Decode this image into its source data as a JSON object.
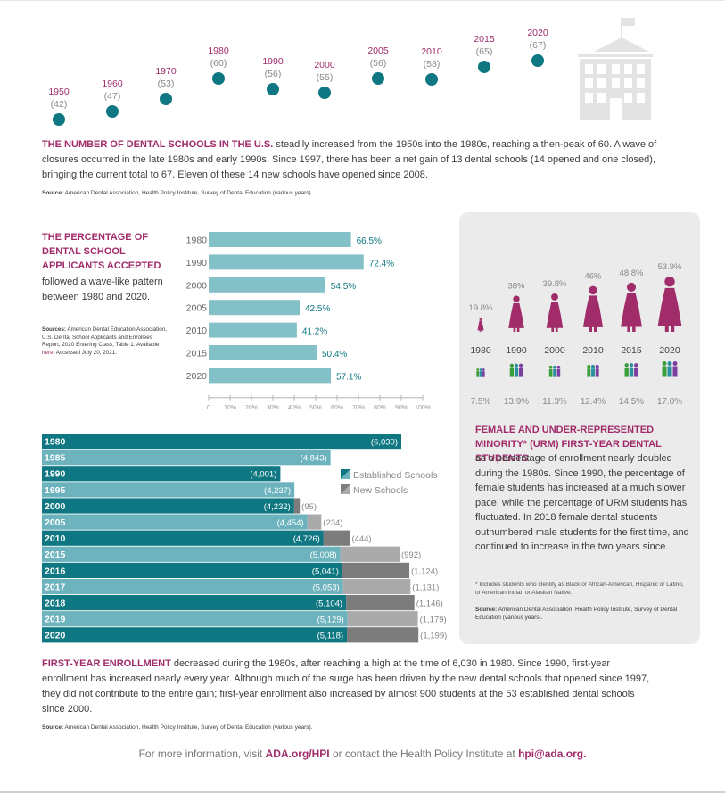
{
  "timeline": {
    "items": [
      {
        "year": "1950",
        "count": "(42)"
      },
      {
        "year": "1960",
        "count": "(47)"
      },
      {
        "year": "1970",
        "count": "(53)"
      },
      {
        "year": "1980",
        "count": "(60)"
      },
      {
        "year": "1990",
        "count": "(56)"
      },
      {
        "year": "2000",
        "count": "(55)"
      },
      {
        "year": "2005",
        "count": "(56)"
      },
      {
        "year": "2010",
        "count": "(58)"
      },
      {
        "year": "2015",
        "count": "(65)"
      },
      {
        "year": "2020",
        "count": "(67)"
      }
    ],
    "icon": "school-building-icon"
  },
  "schools": {
    "headline": "THE NUMBER OF DENTAL SCHOOLS IN THE U.S.",
    "body": " steadily increased from the 1950s into the 1980s, reaching a then-peak of 60. A wave of closures occurred in the late 1980s and early 1990s. Since 1997, there has been a net gain of 13 dental schools (14 opened and one closed), bringing the current total to 67. Eleven of these 14 new schools have opened since 2008.",
    "source_label": "Source:",
    "source_text": " American Dental Association, Health Policy Institute, Survey of Dental Education (various years)."
  },
  "acceptance": {
    "title": "THE PERCENTAGE OF DENTAL SCHOOL APPLICANTS ACCEPTED",
    "body": "followed a wave-like pattern between 1980 and 2020.",
    "source_label": "Sources:",
    "source_text_1": " American Dental Education Association, U.S. Dental School Applicants and Enrollees Report, 2020 Entering Class, Table 1. Available ",
    "source_link": "here",
    "source_text_2": ". Accessed July 20, 2021."
  },
  "enrollment": {
    "headline": "FIRST-YEAR ENROLLMENT",
    "body": " decreased during the 1980s, after reaching a high at the time of 6,030 in 1980. Since 1990, first-year enrollment has increased nearly every year. Although much of the surge has been driven by the new dental schools that opened since 1997, they did not contribute to the entire gain; first-year enrollment also increased by almost 900 students at the 53 established dental schools since 2000.",
    "source_label": "Source:",
    "source_text": " American Dental Association, Health Policy Institute, Survey of Dental Education (various years).",
    "legend_established": "Established Schools",
    "legend_new": "New Schools"
  },
  "urm": {
    "title": "FEMALE AND UNDER-REPRESENTED MINORITY* (URM) FIRST-YEAR DENTAL STUDENTS",
    "body": " as a percentage of enrollment nearly doubled during the 1980s. Since 1990, the percentage of female students has increased at a much slower pace, while the percentage of URM students has fluctuated. In 2018 female dental students outnumbered male students for the first time, and continued to increase in the two years since.",
    "footnote": "* Includes students who identify as Black or African-American, Hispanic or Latino, or American Indian or Alaskan Native.",
    "source_label": "Source:",
    "source_text": " American Dental Association, Health Policy Institute, Survey of Dental Education (various years)."
  },
  "footer": {
    "text_1": "For more information, visit ",
    "link_1": "ADA.org/HPI",
    "text_2": " or contact the Health Policy Institute at ",
    "link_2": "hpi@ada.org."
  },
  "colors": {
    "magenta": "#a02c6a",
    "teal_dark": "#0e7781",
    "teal_light": "#6cb3bd",
    "bar_accept": "#84c0c8",
    "gray_dark": "#7c7c7c",
    "gray_light": "#aaaaaa"
  },
  "chart_data": [
    {
      "type": "bar",
      "orientation": "horizontal",
      "categories": [
        "1980",
        "1990",
        "2000",
        "2005",
        "2010",
        "2015",
        "2020"
      ],
      "values": [
        66.5,
        72.4,
        54.5,
        42.5,
        41.2,
        50.4,
        57.1
      ],
      "value_labels": [
        "66.5%",
        "72.4%",
        "54.5%",
        "42.5%",
        "41.2%",
        "50.4%",
        "57.1%"
      ],
      "xlim": [
        0,
        100
      ],
      "xticks": [
        "0",
        "10%",
        "20%",
        "30%",
        "40%",
        "50%",
        "60%",
        "70%",
        "80%",
        "90%",
        "100%"
      ]
    },
    {
      "type": "bar",
      "orientation": "horizontal",
      "stacked": true,
      "categories": [
        "1980",
        "1985",
        "1990",
        "1995",
        "2000",
        "2005",
        "2010",
        "2015",
        "2016",
        "2017",
        "2018",
        "2019",
        "2020"
      ],
      "series": [
        {
          "name": "Established Schools",
          "values": [
            6030,
            4843,
            4001,
            4237,
            4232,
            4454,
            4726,
            5008,
            5041,
            5053,
            5104,
            5129,
            5118
          ],
          "labels": [
            "(6,030)",
            "(4,843)",
            "(4,001)",
            "(4,237)",
            "(4,232)",
            "(4,454)",
            "(4,726)",
            "(5,008)",
            "(5,041)",
            "(5,053)",
            "(5,104)",
            "(5,129)",
            "(5,118)"
          ]
        },
        {
          "name": "New Schools",
          "values": [
            0,
            0,
            0,
            0,
            95,
            234,
            444,
            992,
            1124,
            1131,
            1146,
            1179,
            1199
          ],
          "labels": [
            "",
            "",
            "",
            "",
            "(95)",
            "(234)",
            "(444)",
            "(992)",
            "(1,124)",
            "(1,131)",
            "(1,146)",
            "(1,179)",
            "(1,199)"
          ]
        }
      ]
    },
    {
      "type": "pictograph",
      "categories": [
        "1980",
        "1990",
        "2000",
        "2010",
        "2015",
        "2020"
      ],
      "series": [
        {
          "name": "Female",
          "values": [
            19.8,
            38,
            39.8,
            46,
            48.8,
            53.9
          ],
          "labels": [
            "19.8%",
            "38%",
            "39.8%",
            "46%",
            "48.8%",
            "53.9%"
          ]
        },
        {
          "name": "URM",
          "values": [
            7.5,
            13.9,
            11.3,
            12.4,
            14.5,
            17.0
          ],
          "labels": [
            "7.5%",
            "13.9%",
            "11.3%",
            "12.4%",
            "14.5%",
            "17.0%"
          ]
        }
      ]
    }
  ]
}
